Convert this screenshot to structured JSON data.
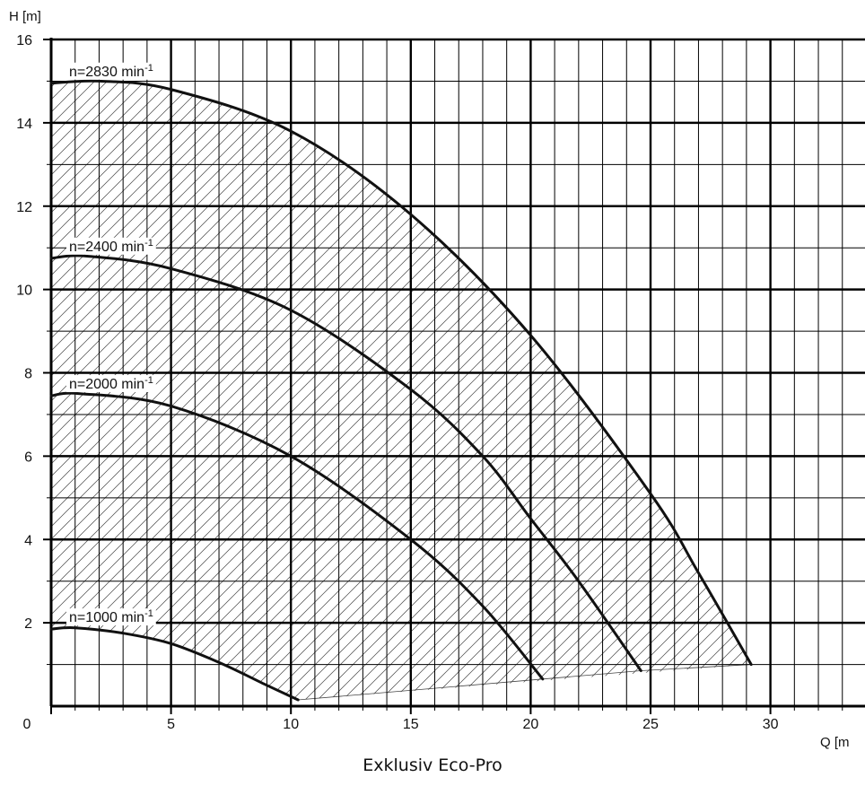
{
  "chart_data": {
    "type": "line",
    "title": "",
    "caption": "Exklusiv Eco-Pro",
    "xlabel": "Q [m",
    "ylabel": "H [m]",
    "xlim": [
      0,
      34
    ],
    "ylim": [
      0,
      16
    ],
    "x_ticks": [
      0,
      5,
      10,
      15,
      20,
      25,
      30
    ],
    "y_ticks": [
      2,
      4,
      6,
      8,
      10,
      12,
      14,
      16
    ],
    "grid": true,
    "operating_range": "hatched area",
    "series": [
      {
        "name": "n=2830 min",
        "superscript": "-1",
        "x": [
          0,
          2,
          5,
          10,
          15,
          20,
          25,
          27,
          29.2
        ],
        "y": [
          14.95,
          15.0,
          14.8,
          13.8,
          11.8,
          8.9,
          5.1,
          3.2,
          1.0
        ]
      },
      {
        "name": "n=2400 min",
        "superscript": "-1",
        "x": [
          0,
          1.5,
          5,
          10,
          15,
          18,
          20,
          22,
          24.6
        ],
        "y": [
          10.75,
          10.8,
          10.5,
          9.5,
          7.6,
          6.0,
          4.5,
          3.0,
          0.85
        ]
      },
      {
        "name": "n=2000 min",
        "superscript": "-1",
        "x": [
          0,
          1.2,
          5,
          10,
          15,
          18,
          20.5
        ],
        "y": [
          7.45,
          7.5,
          7.2,
          6.0,
          4.0,
          2.4,
          0.65
        ]
      },
      {
        "name": "n=1000 min",
        "superscript": "-1",
        "x": [
          0,
          1,
          3,
          5,
          7,
          9,
          10.3
        ],
        "y": [
          1.85,
          1.88,
          1.75,
          1.5,
          1.05,
          0.5,
          0.15
        ]
      }
    ]
  }
}
